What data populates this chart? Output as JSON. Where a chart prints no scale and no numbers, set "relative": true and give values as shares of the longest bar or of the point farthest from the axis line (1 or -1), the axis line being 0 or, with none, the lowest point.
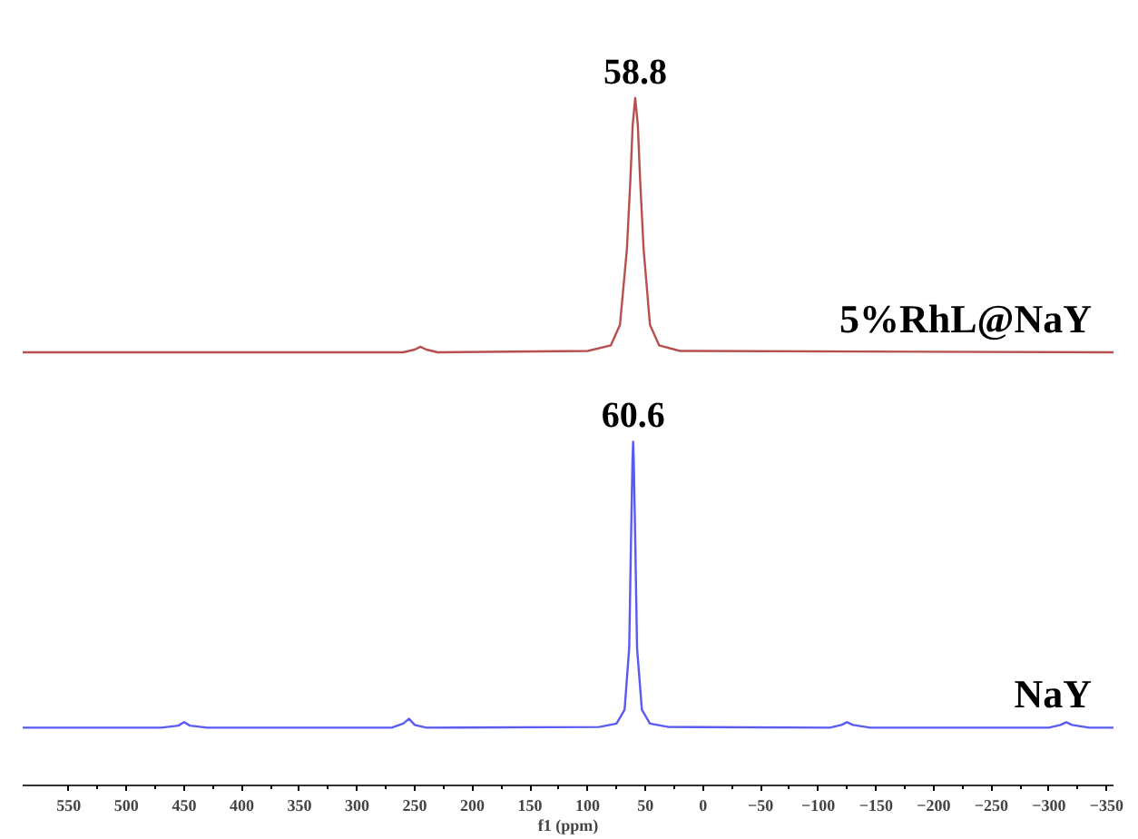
{
  "chart_data": {
    "type": "line",
    "relative": true,
    "xlabel": "f1 (ppm)",
    "xlim": [
      590,
      -356
    ],
    "xticks": [
      550,
      500,
      450,
      400,
      350,
      300,
      250,
      200,
      150,
      100,
      50,
      0,
      -50,
      -100,
      -150,
      -200,
      -250,
      -300,
      -350
    ],
    "grid": false,
    "marker": "none",
    "line_style": "solid",
    "annotations": [
      {
        "text": "58.8",
        "x": 58.8,
        "y": 1
      },
      {
        "text": "60.6",
        "x": 60.6,
        "y": 0.5
      }
    ],
    "series": [
      {
        "name": "5%RhL@NaY",
        "color": "#b5504e",
        "x": [
          590,
          260,
          250,
          245,
          240,
          230,
          100,
          80,
          72,
          66,
          63,
          61,
          58.8,
          56.5,
          54.5,
          51.5,
          46,
          38,
          20,
          -356
        ],
        "values": [
          0.63,
          0.63,
          0.634,
          0.638,
          0.634,
          0.63,
          0.632,
          0.64,
          0.67,
          0.78,
          0.88,
          0.96,
          1,
          0.96,
          0.88,
          0.78,
          0.67,
          0.64,
          0.632,
          0.63
        ]
      },
      {
        "name": "NaY",
        "color": "#5a5af5",
        "x": [
          590,
          470,
          455,
          450,
          445,
          430,
          270,
          260,
          255,
          250,
          240,
          90,
          75,
          68,
          64,
          62.5,
          61.2,
          60.6,
          60,
          58.7,
          57.2,
          53,
          46,
          30,
          -110,
          -120,
          -125,
          -130,
          -145,
          -300,
          -310,
          -315,
          -320,
          -335,
          -356
        ],
        "values": [
          0.084,
          0.084,
          0.087,
          0.092,
          0.087,
          0.084,
          0.084,
          0.09,
          0.097,
          0.088,
          0.084,
          0.085,
          0.09,
          0.11,
          0.2,
          0.35,
          0.47,
          0.5,
          0.47,
          0.35,
          0.2,
          0.11,
          0.09,
          0.085,
          0.084,
          0.088,
          0.092,
          0.088,
          0.084,
          0.084,
          0.088,
          0.092,
          0.088,
          0.084,
          0.084
        ]
      }
    ]
  }
}
